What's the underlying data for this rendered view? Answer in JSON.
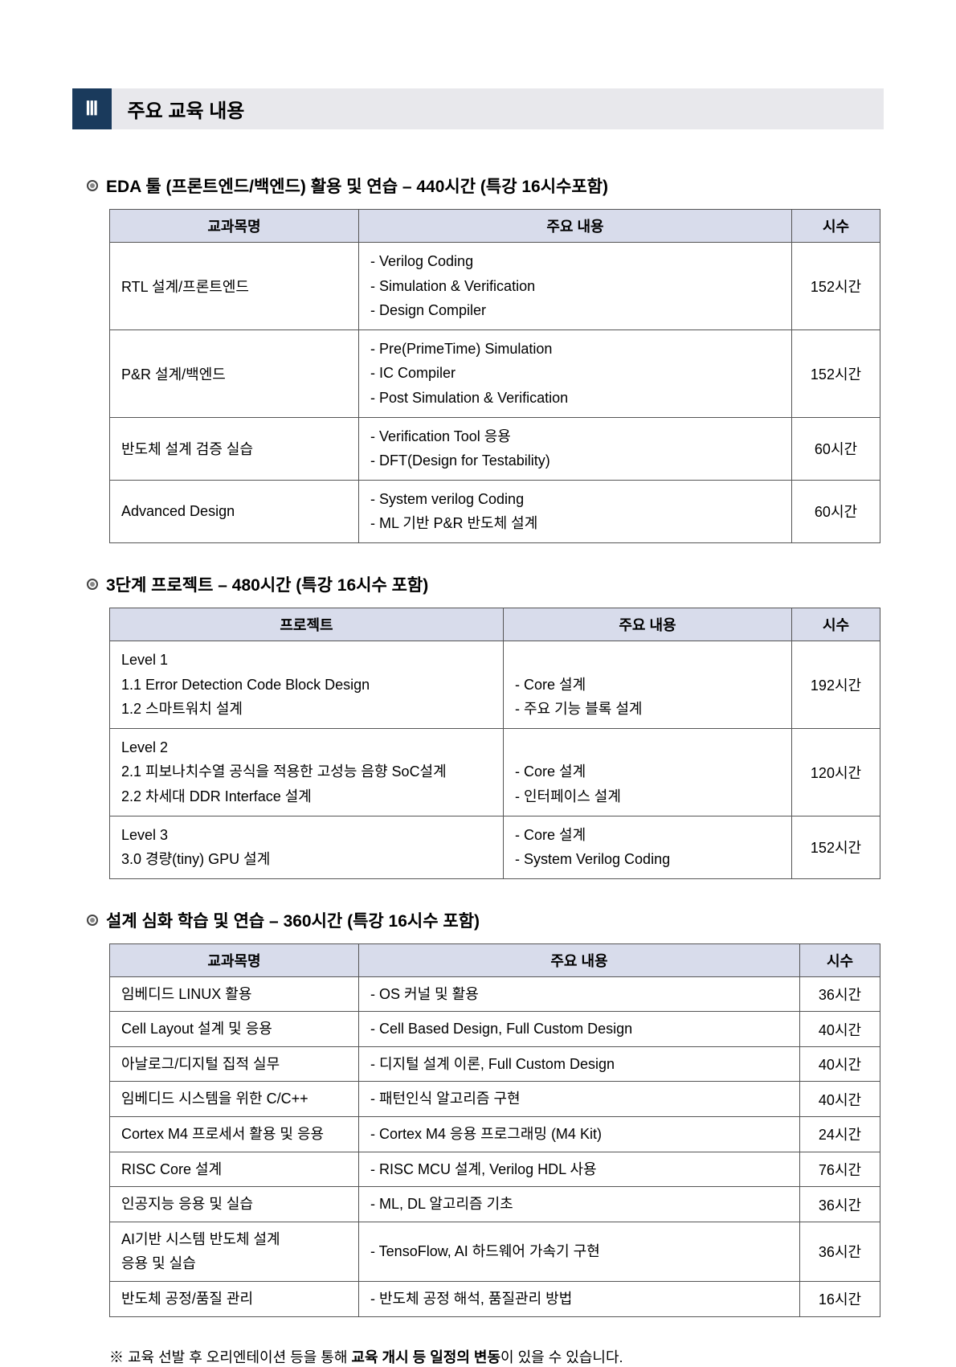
{
  "header": {
    "section_number": "Ⅲ",
    "section_title": "주요 교육 내용"
  },
  "block1": {
    "heading": "EDA 툴 (프론트엔드/백엔드) 활용 및 연습 – 440시간 (특강 16시수포함)",
    "cols": [
      "교과목명",
      "주요 내용",
      "시수"
    ],
    "rows": [
      {
        "subject": "RTL 설계/프론트엔드",
        "content": "- Verilog Coding\n- Simulation & Verification\n- Design Compiler",
        "hours": "152시간"
      },
      {
        "subject": "P&R 설계/백엔드",
        "content": "- Pre(PrimeTime) Simulation\n- IC Compiler\n- Post Simulation & Verification",
        "hours": "152시간"
      },
      {
        "subject": "반도체 설계 검증 실습",
        "content": "- Verification Tool 응용\n- DFT(Design for Testability)",
        "hours": "60시간"
      },
      {
        "subject": "Advanced Design",
        "content": "- System verilog Coding\n- ML 기반 P&R 반도체 설계",
        "hours": "60시간"
      }
    ],
    "col_widths": [
      "310px",
      "auto",
      "110px"
    ]
  },
  "block2": {
    "heading": "3단계 프로젝트 – 480시간 (특강 16시수 포함)",
    "cols": [
      "프로젝트",
      "주요 내용",
      "시수"
    ],
    "rows": [
      {
        "subject": "Level 1\n 1.1 Error Detection Code Block Design\n 1.2 스마트워치 설계",
        "content": "\n- Core 설계\n- 주요 기능 블록 설계",
        "hours": "192시간"
      },
      {
        "subject": "Level 2\n 2.1 피보나치수열 공식을 적용한 고성능 음향 SoC설계\n 2.2 차세대 DDR Interface 설계",
        "content": "\n- Core 설계\n- 인터페이스 설계",
        "hours": "120시간"
      },
      {
        "subject": "Level 3\n 3.0 경량(tiny) GPU 설계",
        "content": "- Core 설계\n- System Verilog Coding",
        "hours": "152시간"
      }
    ],
    "col_widths": [
      "490px",
      "auto",
      "110px"
    ]
  },
  "block3": {
    "heading": "설계 심화 학습 및 연습 – 360시간 (특강 16시수 포함)",
    "cols": [
      "교과목명",
      "주요 내용",
      "시수"
    ],
    "rows": [
      {
        "subject": "임베디드 LINUX 활용",
        "content": "- OS 커널 및 활용",
        "hours": "36시간"
      },
      {
        "subject": "Cell Layout 설계 및 응용",
        "content": "- Cell Based Design, Full Custom Design",
        "hours": "40시간"
      },
      {
        "subject": "아날로그/디지털 집적 실무",
        "content": "- 디지털 설계 이론, Full Custom Design",
        "hours": "40시간"
      },
      {
        "subject": "임베디드 시스템을 위한 C/C++",
        "content": "- 패턴인식 알고리즘 구현",
        "hours": "40시간"
      },
      {
        "subject": "Cortex M4 프로세서 활용 및 응용",
        "content": "- Cortex M4 응용 프로그래밍 (M4 Kit)",
        "hours": "24시간"
      },
      {
        "subject": "RISC Core 설계",
        "content": "- RISC MCU 설계, Verilog HDL 사용",
        "hours": "76시간"
      },
      {
        "subject": "인공지능 응용 및 실습",
        "content": "- ML, DL 알고리즘 기초",
        "hours": "36시간"
      },
      {
        "subject": "AI기반 시스템 반도체 설계\n응용 및 실습",
        "content": "- TensoFlow, AI 하드웨어 가속기 구현",
        "hours": "36시간"
      },
      {
        "subject": "반도체 공정/품질 관리",
        "content": "- 반도체 공정 해석, 품질관리 방법",
        "hours": "16시간"
      }
    ],
    "col_widths": [
      "310px",
      "auto",
      "100px"
    ]
  },
  "footnote": {
    "prefix": "※ 교육 선발 후 오리엔테이션 등을 통해 ",
    "bold": "교육 개시 등 일정의 변동",
    "suffix": "이 있을 수 있습니다."
  },
  "colors": {
    "header_bg": "#1a3a5c",
    "title_bg": "#e8e8ec",
    "th_bg": "#d8dceb",
    "border": "#555555"
  }
}
